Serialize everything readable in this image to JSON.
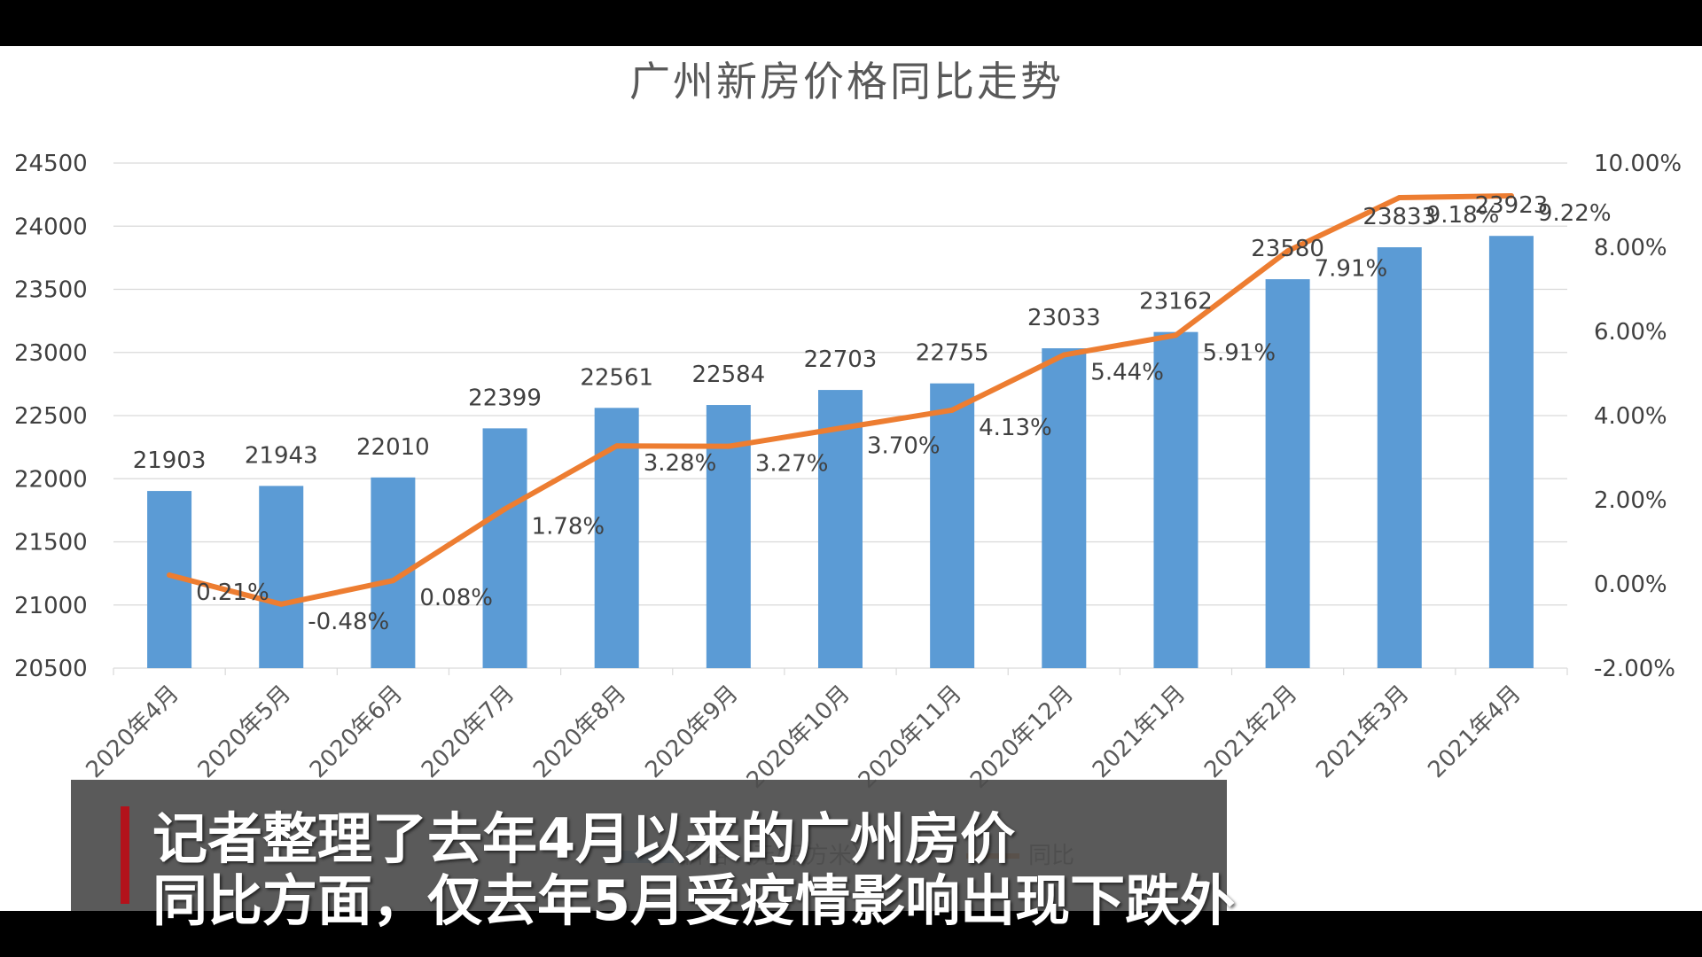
{
  "chart_data": {
    "type": "bar+line",
    "title": "广州新房价格同比走势",
    "categories": [
      "2020年4月",
      "2020年5月",
      "2020年6月",
      "2020年7月",
      "2020年8月",
      "2020年9月",
      "2020年10月",
      "2020年11月",
      "2020年12月",
      "2021年1月",
      "2021年2月",
      "2021年3月",
      "2021年4月"
    ],
    "series": [
      {
        "name": "价格（元/平方米）",
        "type": "bar",
        "axis": "left",
        "color": "#5b9bd5",
        "values": [
          21903,
          21943,
          22010,
          22399,
          22561,
          22584,
          22703,
          22755,
          23033,
          23162,
          23580,
          23833,
          23923
        ]
      },
      {
        "name": "同比",
        "type": "line",
        "axis": "right",
        "color": "#ed7d31",
        "values": [
          0.21,
          -0.48,
          0.08,
          1.78,
          3.28,
          3.27,
          3.7,
          4.13,
          5.44,
          5.91,
          7.91,
          9.18,
          9.22
        ]
      }
    ],
    "bar_labels": [
      "21903",
      "21943",
      "22010",
      "22399",
      "22561",
      "22584",
      "22703",
      "22755",
      "23033",
      "23162",
      "23580",
      "23833",
      "23923"
    ],
    "line_labels": [
      "0.21%",
      "-0.48%",
      "0.08%",
      "1.78%",
      "3.28%",
      "3.27%",
      "3.70%",
      "4.13%",
      "5.44%",
      "5.91%",
      "7.91%",
      "9.18%",
      "9.22%"
    ],
    "y_left": {
      "min": 20500,
      "max": 24500,
      "ticks": [
        "24500",
        "24000",
        "23500",
        "23000",
        "22500",
        "22000",
        "21500",
        "21000",
        "20500"
      ]
    },
    "y_right": {
      "min": -2,
      "max": 10,
      "ticks": [
        "10.00%",
        "8.00%",
        "6.00%",
        "4.00%",
        "2.00%",
        "0.00%",
        "-2.00%"
      ]
    },
    "grid": true,
    "legend_position": "bottom"
  },
  "subtitle": {
    "line1": "记者整理了去年4月以来的广州房价",
    "line2": "同比方面，仅去年5月受疫情影响出现下跌外"
  }
}
